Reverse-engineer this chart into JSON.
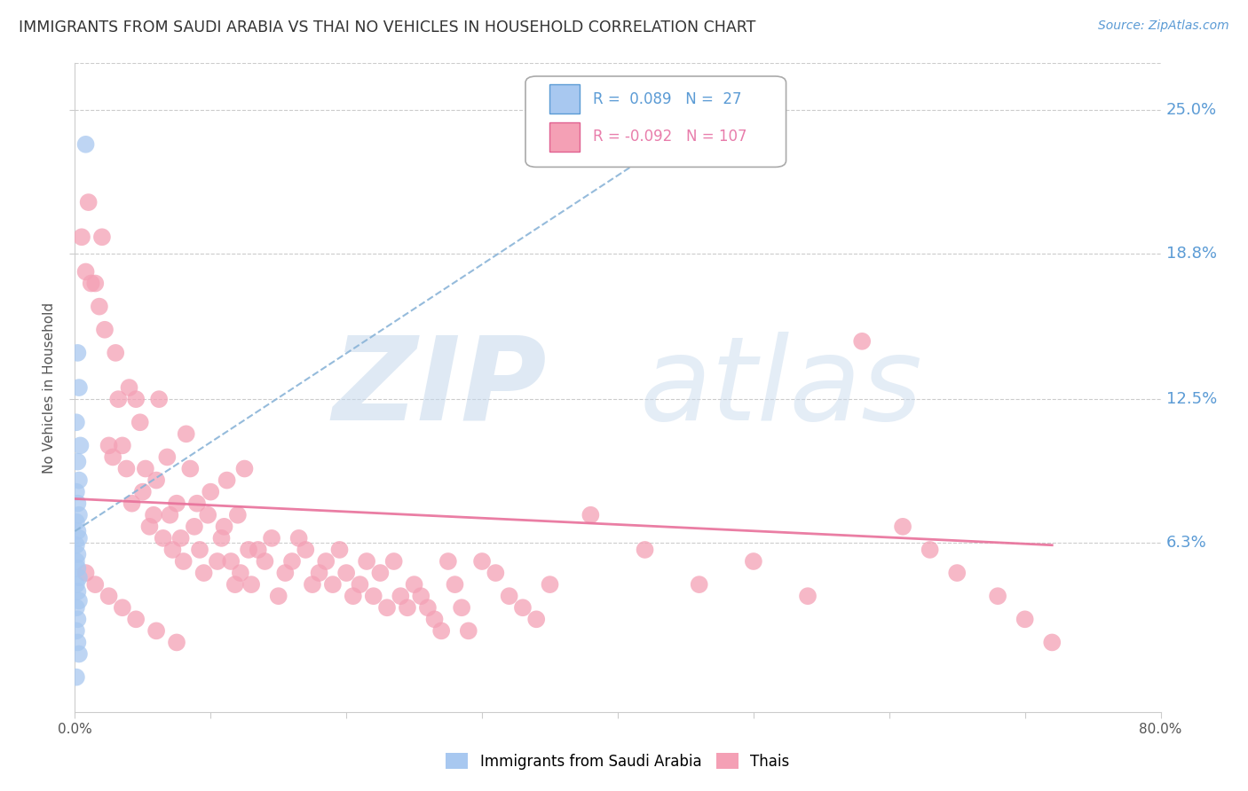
{
  "title": "IMMIGRANTS FROM SAUDI ARABIA VS THAI NO VEHICLES IN HOUSEHOLD CORRELATION CHART",
  "source": "Source: ZipAtlas.com",
  "ylabel": "No Vehicles in Household",
  "ytick_labels": [
    "25.0%",
    "18.8%",
    "12.5%",
    "6.3%"
  ],
  "ytick_values": [
    0.25,
    0.188,
    0.125,
    0.063
  ],
  "xlim": [
    0.0,
    0.8
  ],
  "ylim": [
    -0.01,
    0.27
  ],
  "saudi_color": "#A8C8F0",
  "saudi_color_dark": "#5B9BD5",
  "thai_color": "#F4A0B5",
  "thai_color_dark": "#E06090",
  "trend_saudi_color": "#8AB4D8",
  "trend_thai_color": "#E8709A",
  "R_saudi": 0.089,
  "N_saudi": 27,
  "R_thai": -0.092,
  "N_thai": 107,
  "legend_label_saudi": "Immigrants from Saudi Arabia",
  "legend_label_thai": "Thais",
  "watermark_zip": "ZIP",
  "watermark_atlas": "atlas",
  "background_color": "#FFFFFF",
  "grid_color": "#CCCCCC",
  "saudi_x": [
    0.008,
    0.002,
    0.003,
    0.001,
    0.004,
    0.002,
    0.003,
    0.001,
    0.002,
    0.003,
    0.001,
    0.002,
    0.003,
    0.001,
    0.002,
    0.001,
    0.002,
    0.003,
    0.001,
    0.002,
    0.003,
    0.001,
    0.002,
    0.001,
    0.002,
    0.003,
    0.001
  ],
  "saudi_y": [
    0.235,
    0.145,
    0.13,
    0.115,
    0.105,
    0.098,
    0.09,
    0.085,
    0.08,
    0.075,
    0.072,
    0.068,
    0.065,
    0.062,
    0.058,
    0.055,
    0.052,
    0.048,
    0.045,
    0.042,
    0.038,
    0.035,
    0.03,
    0.025,
    0.02,
    0.015,
    0.005
  ],
  "thai_x": [
    0.005,
    0.008,
    0.01,
    0.012,
    0.015,
    0.018,
    0.02,
    0.022,
    0.025,
    0.028,
    0.03,
    0.032,
    0.035,
    0.038,
    0.04,
    0.042,
    0.045,
    0.048,
    0.05,
    0.052,
    0.055,
    0.058,
    0.06,
    0.062,
    0.065,
    0.068,
    0.07,
    0.072,
    0.075,
    0.078,
    0.08,
    0.082,
    0.085,
    0.088,
    0.09,
    0.092,
    0.095,
    0.098,
    0.1,
    0.105,
    0.108,
    0.11,
    0.112,
    0.115,
    0.118,
    0.12,
    0.122,
    0.125,
    0.128,
    0.13,
    0.135,
    0.14,
    0.145,
    0.15,
    0.155,
    0.16,
    0.165,
    0.17,
    0.175,
    0.18,
    0.185,
    0.19,
    0.195,
    0.2,
    0.205,
    0.21,
    0.215,
    0.22,
    0.225,
    0.23,
    0.235,
    0.24,
    0.245,
    0.25,
    0.255,
    0.26,
    0.265,
    0.27,
    0.275,
    0.28,
    0.285,
    0.29,
    0.3,
    0.31,
    0.32,
    0.33,
    0.34,
    0.35,
    0.38,
    0.42,
    0.46,
    0.5,
    0.54,
    0.58,
    0.61,
    0.63,
    0.65,
    0.68,
    0.7,
    0.72,
    0.008,
    0.015,
    0.025,
    0.035,
    0.045,
    0.06,
    0.075
  ],
  "thai_y": [
    0.195,
    0.18,
    0.21,
    0.175,
    0.175,
    0.165,
    0.195,
    0.155,
    0.105,
    0.1,
    0.145,
    0.125,
    0.105,
    0.095,
    0.13,
    0.08,
    0.125,
    0.115,
    0.085,
    0.095,
    0.07,
    0.075,
    0.09,
    0.125,
    0.065,
    0.1,
    0.075,
    0.06,
    0.08,
    0.065,
    0.055,
    0.11,
    0.095,
    0.07,
    0.08,
    0.06,
    0.05,
    0.075,
    0.085,
    0.055,
    0.065,
    0.07,
    0.09,
    0.055,
    0.045,
    0.075,
    0.05,
    0.095,
    0.06,
    0.045,
    0.06,
    0.055,
    0.065,
    0.04,
    0.05,
    0.055,
    0.065,
    0.06,
    0.045,
    0.05,
    0.055,
    0.045,
    0.06,
    0.05,
    0.04,
    0.045,
    0.055,
    0.04,
    0.05,
    0.035,
    0.055,
    0.04,
    0.035,
    0.045,
    0.04,
    0.035,
    0.03,
    0.025,
    0.055,
    0.045,
    0.035,
    0.025,
    0.055,
    0.05,
    0.04,
    0.035,
    0.03,
    0.045,
    0.075,
    0.06,
    0.045,
    0.055,
    0.04,
    0.15,
    0.07,
    0.06,
    0.05,
    0.04,
    0.03,
    0.02,
    0.05,
    0.045,
    0.04,
    0.035,
    0.03,
    0.025,
    0.02
  ],
  "saudi_trend_x": [
    0.0,
    0.5
  ],
  "saudi_trend_y": [
    0.068,
    0.26
  ],
  "thai_trend_x": [
    0.0,
    0.72
  ],
  "thai_trend_y": [
    0.082,
    0.062
  ]
}
